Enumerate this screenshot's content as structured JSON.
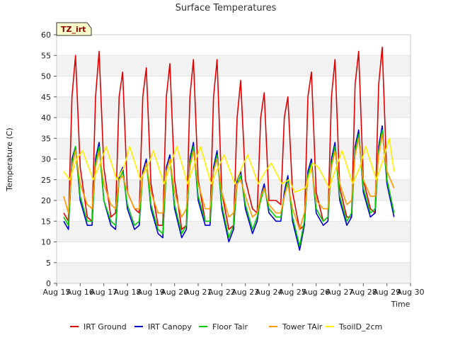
{
  "chart_data": {
    "type": "line",
    "title": "Surface Temperatures",
    "xlabel": "Time",
    "ylabel": "Temperature (C)",
    "badge": "TZ_irt",
    "ylim": [
      0,
      60
    ],
    "yticks": [
      0,
      5,
      10,
      15,
      20,
      25,
      30,
      35,
      40,
      45,
      50,
      55,
      60
    ],
    "xlim": [
      15,
      30
    ],
    "xticks": [
      15,
      16,
      17,
      18,
      19,
      20,
      21,
      22,
      23,
      24,
      25,
      26,
      27,
      28,
      29,
      30
    ],
    "xtick_labels": [
      "Aug 15",
      "Aug 16",
      "Aug 17",
      "Aug 18",
      "Aug 19",
      "Aug 20",
      "Aug 21",
      "Aug 22",
      "Aug 23",
      "Aug 24",
      "Aug 25",
      "Aug 26",
      "Aug 27",
      "Aug 28",
      "Aug 29",
      "Aug 30"
    ],
    "grid": "horizontal bands",
    "legend_position": "bottom",
    "series": [
      {
        "name": "IRT Ground",
        "color": "#e00000",
        "x": [
          15.3,
          15.5,
          15.65,
          15.8,
          16.0,
          16.3,
          16.5,
          16.65,
          16.8,
          17.0,
          17.3,
          17.5,
          17.65,
          17.8,
          18.0,
          18.3,
          18.5,
          18.65,
          18.8,
          19.0,
          19.3,
          19.5,
          19.65,
          19.8,
          20.0,
          20.3,
          20.5,
          20.65,
          20.8,
          21.0,
          21.3,
          21.5,
          21.65,
          21.8,
          22.0,
          22.3,
          22.5,
          22.65,
          22.8,
          23.0,
          23.3,
          23.5,
          23.65,
          23.8,
          24.0,
          24.3,
          24.5,
          24.65,
          24.8,
          25.0,
          25.3,
          25.5,
          25.65,
          25.8,
          26.0,
          26.3,
          26.5,
          26.65,
          26.8,
          27.0,
          27.3,
          27.5,
          27.65,
          27.8,
          28.0,
          28.3,
          28.5,
          28.65,
          28.8,
          29.0,
          29.3
        ],
        "y": [
          17,
          15,
          45,
          55,
          28,
          16,
          15,
          45,
          56,
          28,
          16,
          17,
          45,
          51,
          22,
          18,
          17,
          45,
          52,
          24,
          14,
          14,
          45,
          53,
          25,
          13,
          14,
          45,
          54,
          25,
          15,
          15,
          45,
          54,
          22,
          13,
          14,
          40,
          49,
          25,
          18,
          17,
          40,
          46,
          20,
          20,
          19,
          40,
          45,
          22,
          13,
          14,
          45,
          51,
          22,
          15,
          16,
          45,
          54,
          23,
          16,
          16,
          48,
          56,
          25,
          18,
          17,
          48,
          57,
          25,
          17
        ]
      },
      {
        "name": "IRT Canopy",
        "color": "#0000cc",
        "x": [
          15.3,
          15.5,
          15.65,
          15.8,
          16.0,
          16.3,
          16.5,
          16.65,
          16.8,
          17.0,
          17.3,
          17.5,
          17.65,
          17.8,
          18.0,
          18.3,
          18.5,
          18.65,
          18.8,
          19.0,
          19.3,
          19.5,
          19.65,
          19.8,
          20.0,
          20.3,
          20.5,
          20.65,
          20.8,
          21.0,
          21.3,
          21.5,
          21.65,
          21.8,
          22.0,
          22.3,
          22.5,
          22.65,
          22.8,
          23.0,
          23.3,
          23.5,
          23.65,
          23.8,
          24.0,
          24.3,
          24.5,
          24.65,
          24.8,
          25.0,
          25.3,
          25.5,
          25.65,
          25.8,
          26.0,
          26.3,
          26.5,
          26.65,
          26.8,
          27.0,
          27.3,
          27.5,
          27.65,
          27.8,
          28.0,
          28.3,
          28.5,
          28.65,
          28.8,
          29.0,
          29.3
        ],
        "y": [
          15,
          13,
          30,
          33,
          20,
          14,
          14,
          30,
          34,
          20,
          14,
          13,
          26,
          28,
          18,
          13,
          14,
          27,
          30,
          18,
          12,
          11,
          28,
          31,
          18,
          11,
          13,
          30,
          34,
          20,
          14,
          14,
          28,
          32,
          18,
          10,
          13,
          25,
          27,
          18,
          12,
          15,
          21,
          24,
          17,
          15,
          15,
          22,
          26,
          15,
          8,
          14,
          27,
          30,
          17,
          14,
          15,
          30,
          34,
          20,
          14,
          16,
          33,
          37,
          22,
          16,
          17,
          33,
          38,
          24,
          16
        ]
      },
      {
        "name": "Floor Tair",
        "color": "#00cc00",
        "x": [
          15.3,
          15.5,
          15.65,
          15.8,
          16.0,
          16.3,
          16.5,
          16.65,
          16.8,
          17.0,
          17.3,
          17.5,
          17.65,
          17.8,
          18.0,
          18.3,
          18.5,
          18.65,
          18.8,
          19.0,
          19.3,
          19.5,
          19.65,
          19.8,
          20.0,
          20.3,
          20.5,
          20.65,
          20.8,
          21.0,
          21.3,
          21.5,
          21.65,
          21.8,
          22.0,
          22.3,
          22.5,
          22.65,
          22.8,
          23.0,
          23.3,
          23.5,
          23.65,
          23.8,
          24.0,
          24.3,
          24.5,
          24.65,
          24.8,
          25.0,
          25.3,
          25.5,
          25.65,
          25.8,
          26.0,
          26.3,
          26.5,
          26.65,
          26.8,
          27.0,
          27.3,
          27.5,
          27.65,
          27.8,
          28.0,
          28.3,
          28.5,
          28.65,
          28.8,
          29.0,
          29.3
        ],
        "y": [
          16,
          14,
          29,
          33,
          21,
          15,
          15,
          29,
          33,
          20,
          15,
          14,
          25,
          27,
          19,
          14,
          15,
          26,
          29,
          19,
          13,
          12,
          27,
          30,
          19,
          12,
          14,
          29,
          33,
          21,
          15,
          15,
          27,
          31,
          19,
          11,
          14,
          24,
          26,
          19,
          13,
          16,
          20,
          23,
          18,
          16,
          16,
          21,
          25,
          16,
          9,
          15,
          26,
          29,
          18,
          15,
          16,
          29,
          33,
          21,
          15,
          17,
          32,
          36,
          23,
          17,
          18,
          32,
          37,
          25,
          17
        ]
      },
      {
        "name": "Tower TAir",
        "color": "#ff9900",
        "x": [
          15.3,
          15.5,
          15.65,
          15.8,
          16.0,
          16.3,
          16.5,
          16.65,
          16.8,
          17.0,
          17.3,
          17.5,
          17.65,
          17.8,
          18.0,
          18.3,
          18.5,
          18.65,
          18.8,
          19.0,
          19.3,
          19.5,
          19.65,
          19.8,
          20.0,
          20.3,
          20.5,
          20.65,
          20.8,
          21.0,
          21.3,
          21.5,
          21.65,
          21.8,
          22.0,
          22.3,
          22.5,
          22.65,
          22.8,
          23.0,
          23.3,
          23.5,
          23.65,
          23.8,
          24.0,
          24.3,
          24.5,
          24.65,
          24.8,
          25.0,
          25.3,
          25.5,
          25.65,
          25.8,
          26.0,
          26.3,
          26.5,
          26.65,
          26.8,
          27.0,
          27.3,
          27.5,
          27.65,
          27.8,
          28.0,
          28.3,
          28.5,
          28.65,
          28.8,
          29.0,
          29.3
        ],
        "y": [
          21,
          17,
          28,
          32,
          24,
          19,
          18,
          28,
          32,
          24,
          19,
          18,
          25,
          26,
          22,
          18,
          18,
          26,
          29,
          22,
          17,
          17,
          27,
          30,
          22,
          16,
          18,
          28,
          32,
          24,
          18,
          18,
          27,
          30,
          22,
          16,
          17,
          24,
          25,
          21,
          16,
          17,
          21,
          23,
          19,
          17,
          17,
          21,
          24,
          18,
          13,
          17,
          25,
          28,
          20,
          18,
          18,
          28,
          32,
          24,
          19,
          20,
          31,
          35,
          25,
          21,
          21,
          31,
          36,
          27,
          23
        ]
      },
      {
        "name": "TsoilD_2cm",
        "color": "#ffee00",
        "x": [
          15.3,
          15.55,
          15.85,
          16.1,
          16.55,
          16.85,
          17.1,
          17.55,
          17.85,
          18.1,
          18.55,
          18.85,
          19.1,
          19.55,
          19.85,
          20.1,
          20.55,
          20.85,
          21.1,
          21.55,
          21.85,
          22.1,
          22.55,
          22.85,
          23.1,
          23.55,
          23.85,
          24.1,
          24.55,
          24.85,
          25.1,
          25.55,
          25.85,
          26.1,
          26.55,
          26.85,
          27.1,
          27.55,
          27.85,
          28.1,
          28.55,
          28.85,
          29.1,
          29.3
        ],
        "y": [
          27,
          25,
          30,
          32,
          25,
          29,
          33,
          25,
          28,
          33,
          25,
          28,
          32,
          24,
          29,
          33,
          24,
          29,
          33,
          24,
          28,
          31,
          24,
          28,
          31,
          24,
          27,
          29,
          24,
          25,
          22,
          23,
          29,
          28,
          23,
          28,
          32,
          24,
          28,
          33,
          25,
          30,
          35,
          27
        ]
      }
    ]
  }
}
